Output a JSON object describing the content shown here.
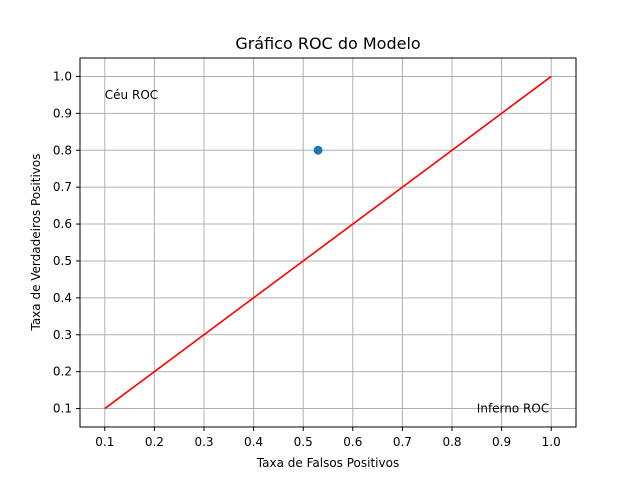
{
  "chart_data": {
    "type": "line",
    "title": "Gráfico ROC do Modelo",
    "xlabel": "Taxa de Falsos Positivos",
    "ylabel": "Taxa de Verdadeiros Positivos",
    "xlim": [
      0.05,
      1.05
    ],
    "ylim": [
      0.05,
      1.05
    ],
    "xticks": [
      0.1,
      0.2,
      0.3,
      0.4,
      0.5,
      0.6,
      0.7,
      0.8,
      0.9,
      1.0
    ],
    "yticks": [
      0.1,
      0.2,
      0.3,
      0.4,
      0.5,
      0.6,
      0.7,
      0.8,
      0.9,
      1.0
    ],
    "xtick_labels": [
      "0.1",
      "0.2",
      "0.3",
      "0.4",
      "0.5",
      "0.6",
      "0.7",
      "0.8",
      "0.9",
      "1.0"
    ],
    "ytick_labels": [
      "0.1",
      "0.2",
      "0.3",
      "0.4",
      "0.5",
      "0.6",
      "0.7",
      "0.8",
      "0.9",
      "1.0"
    ],
    "grid": true,
    "series": [
      {
        "type": "line",
        "color": "#ff0000",
        "x": [
          0.1,
          1.0
        ],
        "y": [
          0.1,
          1.0
        ]
      },
      {
        "type": "scatter",
        "color": "#1f77b4",
        "x": [
          0.53
        ],
        "y": [
          0.8
        ]
      }
    ],
    "annotations": [
      {
        "text": "Céu ROC",
        "x": 0.1,
        "y": 0.95
      },
      {
        "text": "Inferno ROC",
        "x": 0.85,
        "y": 0.1
      }
    ]
  }
}
